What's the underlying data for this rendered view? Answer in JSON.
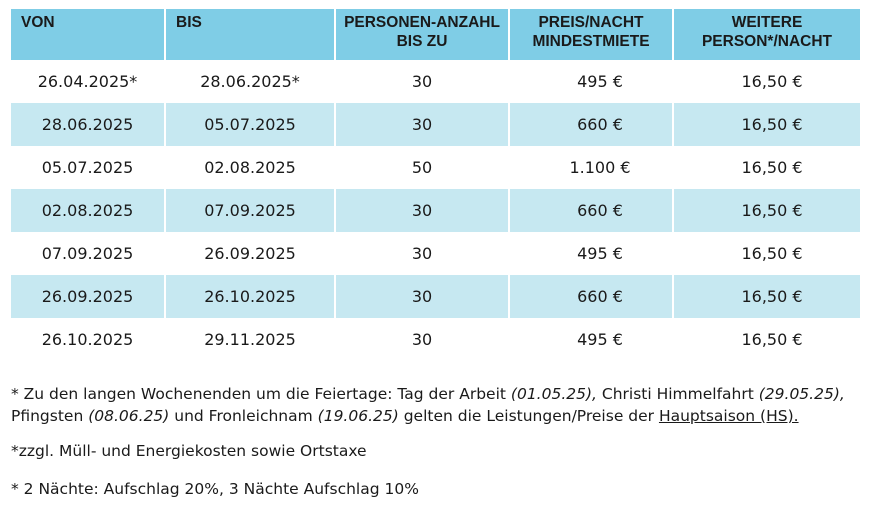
{
  "table": {
    "headers": [
      "VON",
      "BIS",
      "PERSONEN-ANZAHL BIS ZU",
      "PREIS/NACHT MINDESTMIETE",
      "WEITERE PERSON*/NACHT"
    ],
    "rows": [
      {
        "von": "26.04.2025*",
        "bis": "28.06.2025*",
        "personen": "30",
        "preis": "495 €",
        "weitere": "16,50 €"
      },
      {
        "von": "28.06.2025",
        "bis": "05.07.2025",
        "personen": "30",
        "preis": "660 €",
        "weitere": "16,50 €"
      },
      {
        "von": "05.07.2025",
        "bis": "02.08.2025",
        "personen": "50",
        "preis": "1.100 €",
        "weitere": "16,50 €"
      },
      {
        "von": "02.08.2025",
        "bis": "07.09.2025",
        "personen": "30",
        "preis": "660 €",
        "weitere": "16,50 €"
      },
      {
        "von": "07.09.2025",
        "bis": "26.09.2025",
        "personen": "30",
        "preis": "495 €",
        "weitere": "16,50 €"
      },
      {
        "von": "26.09.2025",
        "bis": "26.10.2025",
        "personen": "30",
        "preis": "660 €",
        "weitere": "16,50 €"
      },
      {
        "von": "26.10.2025",
        "bis": "29.11.2025",
        "personen": "30",
        "preis": "495 €",
        "weitere": "16,50 €"
      }
    ]
  },
  "notes": {
    "note1": {
      "t1": "* Zu den langen Wochenenden um die Feiertage: Tag der Arbeit ",
      "d1": "(01.05.25),",
      "t2": " Christi Himmelfahrt ",
      "d2": "(29.05.25),",
      "t3": " Pfingsten ",
      "d3": "(08.06.25)",
      "t4": " und Fronleichnam ",
      "d4": "(19.06.25)",
      "t5": " gelten die Leistungen/Preise der ",
      "link": "Hauptsaison (HS)."
    },
    "note2": "*zzgl. Müll- und Energiekosten sowie Ortstaxe",
    "note3": "* 2 Nächte: Aufschlag 20%, 3 Nächte Aufschlag 10%"
  },
  "colors": {
    "header": "#7fcde6",
    "shaded_row": "#c6e8f1"
  }
}
